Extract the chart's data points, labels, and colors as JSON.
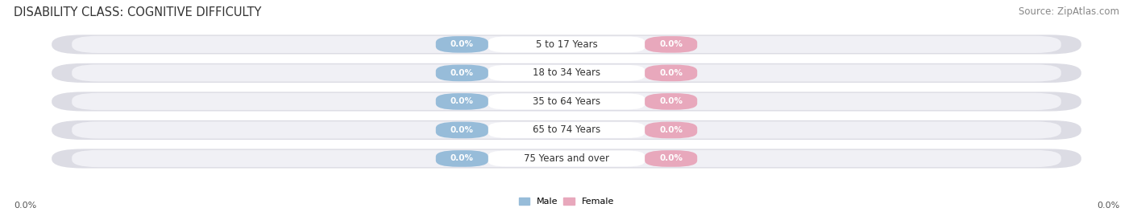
{
  "title": "DISABILITY CLASS: COGNITIVE DIFFICULTY",
  "source": "Source: ZipAtlas.com",
  "categories": [
    "5 to 17 Years",
    "18 to 34 Years",
    "35 to 64 Years",
    "65 to 74 Years",
    "75 Years and over"
  ],
  "male_values": [
    0.0,
    0.0,
    0.0,
    0.0,
    0.0
  ],
  "female_values": [
    0.0,
    0.0,
    0.0,
    0.0,
    0.0
  ],
  "male_color": "#97bcd9",
  "female_color": "#e8a8bc",
  "bar_bg_color": "#dcdce4",
  "bar_inner_bg": "#f0f0f5",
  "x_left_label": "0.0%",
  "x_right_label": "0.0%",
  "legend_male": "Male",
  "legend_female": "Female",
  "title_fontsize": 10.5,
  "source_fontsize": 8.5,
  "axis_label_fontsize": 8,
  "bar_label_fontsize": 7.5,
  "category_fontsize": 8.5,
  "figsize": [
    14.06,
    2.69
  ],
  "dpi": 100
}
